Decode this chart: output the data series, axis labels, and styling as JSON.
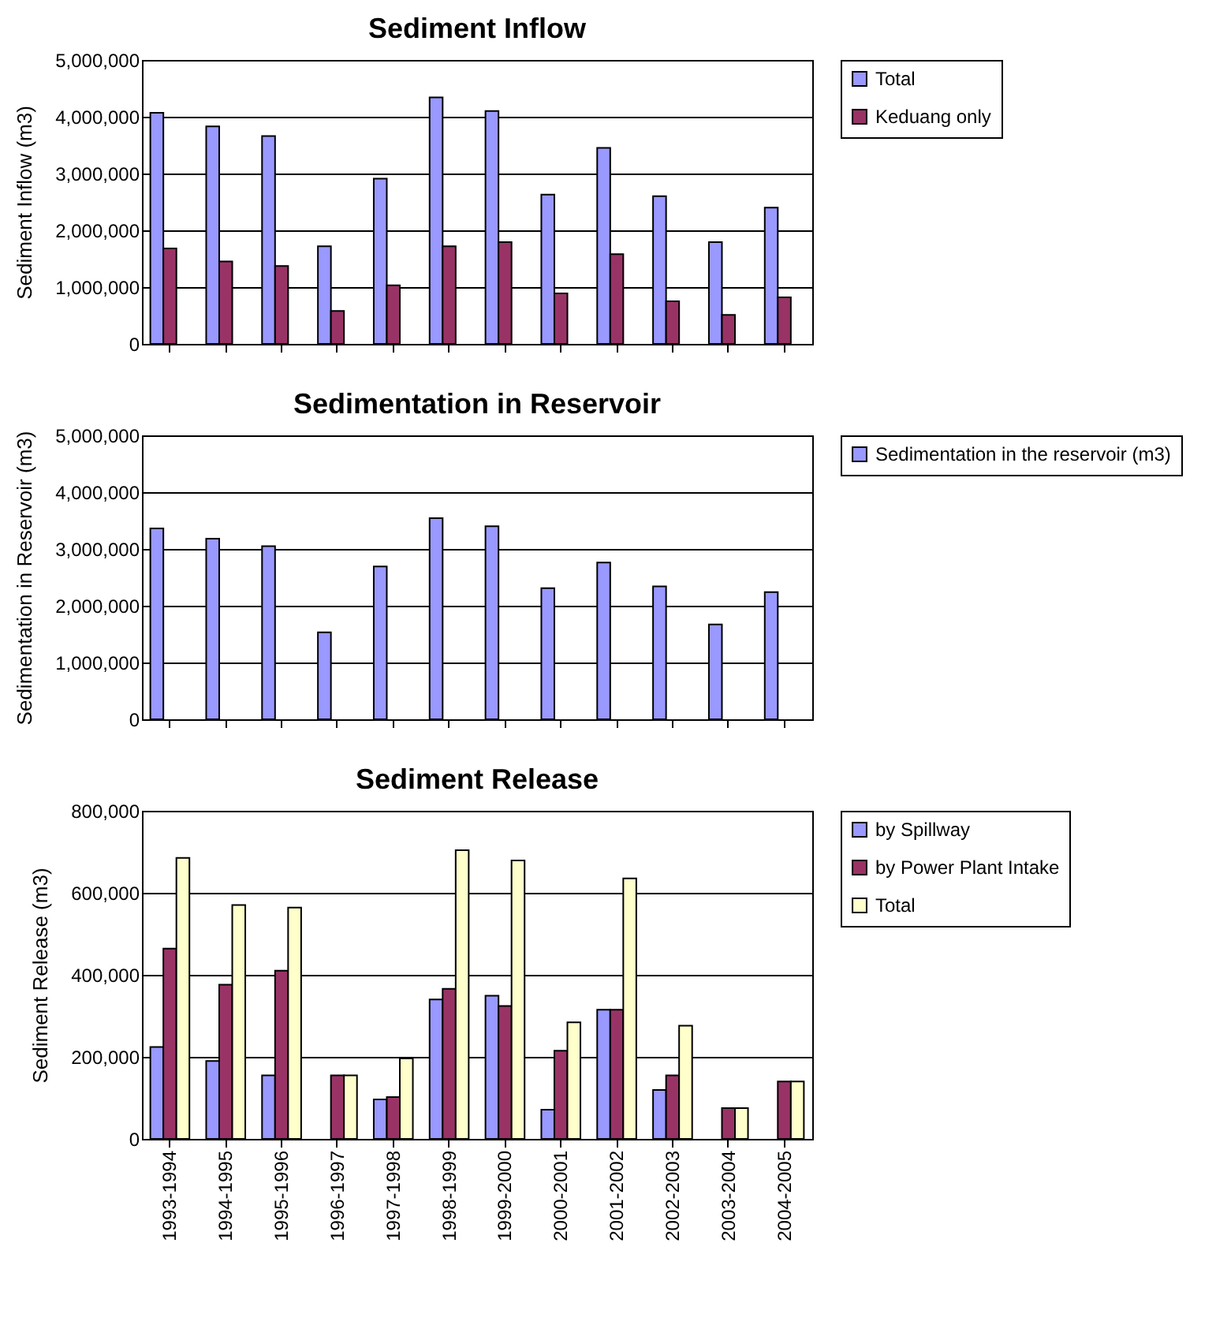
{
  "chart_data": [
    {
      "type": "bar",
      "title": "Sediment Inflow",
      "ylabel": "Sediment Inflow (m3)",
      "categories": [
        null,
        null,
        null,
        null,
        null,
        null,
        null,
        null,
        null,
        null,
        null,
        null
      ],
      "tick_labels": "y",
      "series": [
        {
          "name": "Total",
          "color": "#9999ff",
          "values": [
            4070000,
            3830000,
            3660000,
            1720000,
            2910000,
            4340000,
            4100000,
            2630000,
            3450000,
            2600000,
            1790000,
            2400000
          ]
        },
        {
          "name": "Keduang only",
          "color": "#993366",
          "values": [
            1680000,
            1450000,
            1370000,
            580000,
            1030000,
            1720000,
            1790000,
            890000,
            1580000,
            750000,
            510000,
            820000
          ]
        }
      ],
      "ylim": [
        0,
        5000000
      ],
      "yticks": [
        {
          "value": 0,
          "label": "0"
        },
        {
          "value": 1000000,
          "label": "1,000,000"
        },
        {
          "value": 2000000,
          "label": "2,000,000"
        },
        {
          "value": 3000000,
          "label": "3,000,000"
        },
        {
          "value": 4000000,
          "label": "4,000,000"
        },
        {
          "value": 5000000,
          "label": "5,000,000"
        }
      ],
      "grid": "y",
      "legend": "right"
    },
    {
      "type": "bar",
      "title": "Sedimentation in Reservoir",
      "ylabel": "Sedimentation in Reservoir (m3)",
      "categories": [
        null,
        null,
        null,
        null,
        null,
        null,
        null,
        null,
        null,
        null,
        null,
        null
      ],
      "tick_labels": "y",
      "series": [
        {
          "name": "Sedimentation in the reservoir (m3)",
          "color": "#9999ff",
          "values": [
            3360000,
            3180000,
            3050000,
            1530000,
            2690000,
            3540000,
            3400000,
            2310000,
            2760000,
            2340000,
            1670000,
            2240000
          ]
        }
      ],
      "ylim": [
        0,
        5000000
      ],
      "yticks": [
        {
          "value": 0,
          "label": "0"
        },
        {
          "value": 1000000,
          "label": "1,000,000"
        },
        {
          "value": 2000000,
          "label": "2,000,000"
        },
        {
          "value": 3000000,
          "label": "3,000,000"
        },
        {
          "value": 4000000,
          "label": "4,000,000"
        },
        {
          "value": 5000000,
          "label": "5,000,000"
        }
      ],
      "grid": "y",
      "legend": "right"
    },
    {
      "type": "bar",
      "title": "Sediment Release",
      "ylabel": "Sediment Release (m3)",
      "categories": [
        "1993-1994",
        "1994-1995",
        "1995-1996",
        "1996-1997",
        "1997-1998",
        "1998-1999",
        "1999-2000",
        "2000-2001",
        "2001-2002",
        "2002-2003",
        "2003-2004",
        "2004-2005"
      ],
      "series": [
        {
          "name": "by Spillway",
          "color": "#9999ff",
          "values": [
            224000,
            190000,
            155000,
            null,
            96000,
            340000,
            349000,
            71000,
            315000,
            119000,
            null,
            null
          ]
        },
        {
          "name": "by Power Plant Intake",
          "color": "#993366",
          "values": [
            464000,
            376000,
            410000,
            155000,
            102000,
            366000,
            324000,
            215000,
            315000,
            155000,
            75000,
            140000
          ]
        },
        {
          "name": "Total",
          "color": "#ffffcc",
          "values": [
            685000,
            570000,
            564000,
            155000,
            196000,
            704000,
            679000,
            284000,
            635000,
            276000,
            75000,
            140000
          ]
        }
      ],
      "ylim": [
        0,
        800000
      ],
      "yticks": [
        {
          "value": 0,
          "label": "0"
        },
        {
          "value": 200000,
          "label": "200,000"
        },
        {
          "value": 400000,
          "label": "400,000"
        },
        {
          "value": 600000,
          "label": "600,000"
        },
        {
          "value": 800000,
          "label": "800,000"
        }
      ],
      "grid": "y",
      "legend": "right"
    }
  ]
}
